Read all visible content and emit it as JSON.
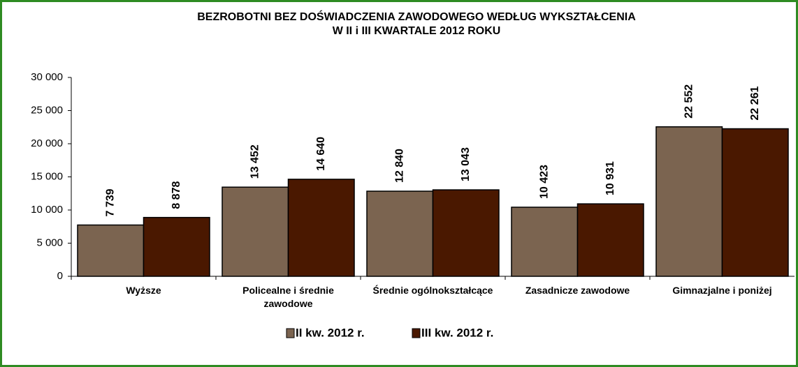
{
  "chart_data": {
    "type": "bar",
    "title": "BEZROBOTNI BEZ DOŚWIADCZENIA ZAWODOWEGO  WEDŁUG  WYKSZTAŁCENIA",
    "subtitle": "W II i III KWARTALE 2012 ROKU",
    "categories": [
      "Wyższe",
      "Policealne i średnie zawodowe",
      "Średnie ogólnokształcące",
      "Zasadnicze zawodowe",
      "Gimnazjalne i poniżej"
    ],
    "series": [
      {
        "name": "II kw. 2012 r.",
        "color": "#7b6450",
        "values": [
          7739,
          13452,
          12840,
          10423,
          22552
        ],
        "value_labels": [
          "7 739",
          "13 452",
          "12 840",
          "10 423",
          "22 552"
        ]
      },
      {
        "name": "III kw. 2012 r.",
        "color": "#4a1800",
        "values": [
          8878,
          14640,
          13043,
          10931,
          22261
        ],
        "value_labels": [
          "8 878",
          "14 640",
          "13 043",
          "10 931",
          "22 261"
        ]
      }
    ],
    "ylim": [
      0,
      30000
    ],
    "yticks": [
      0,
      {
        "value": 5000,
        "label": "5 000"
      },
      {
        "value": 10000,
        "label": "10 000"
      },
      {
        "value": 15000,
        "label": "15 000"
      },
      {
        "value": 20000,
        "label": "20 000"
      },
      {
        "value": 25000,
        "label": "25 000"
      },
      {
        "value": 30000,
        "label": "30 000"
      }
    ],
    "grid": false,
    "legend": "bottom"
  }
}
